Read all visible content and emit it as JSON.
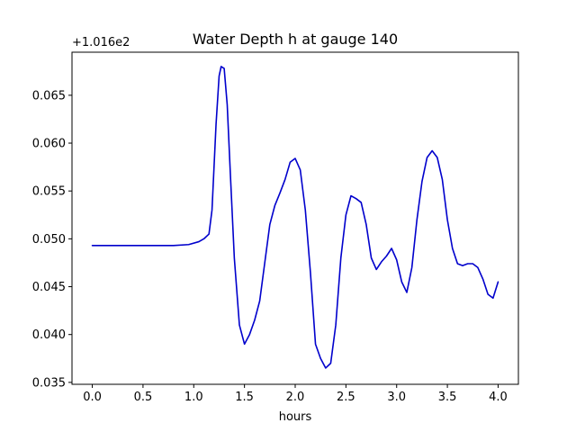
{
  "chart_data": {
    "type": "line",
    "title": "Water Depth h at gauge 140",
    "xlabel": "hours",
    "ylabel": "",
    "y_offset_label": "+1.016e2",
    "xlim": [
      -0.2,
      4.2
    ],
    "ylim": [
      0.0348,
      0.0695
    ],
    "x_ticks": [
      0.0,
      0.5,
      1.0,
      1.5,
      2.0,
      2.5,
      3.0,
      3.5,
      4.0
    ],
    "x_tick_labels": [
      "0.0",
      "0.5",
      "1.0",
      "1.5",
      "2.0",
      "2.5",
      "3.0",
      "3.5",
      "4.0"
    ],
    "y_ticks": [
      0.035,
      0.04,
      0.045,
      0.05,
      0.055,
      0.06,
      0.065
    ],
    "y_tick_labels": [
      "0.035",
      "0.040",
      "0.045",
      "0.050",
      "0.055",
      "0.060",
      "0.065"
    ],
    "grid": false,
    "line_color": "#0000cc",
    "series": [
      {
        "x": [
          0.0,
          0.2,
          0.4,
          0.6,
          0.8,
          0.95,
          1.05,
          1.1,
          1.15,
          1.18,
          1.22,
          1.25,
          1.27,
          1.3,
          1.33,
          1.36,
          1.4,
          1.45,
          1.5,
          1.55,
          1.6,
          1.65,
          1.7,
          1.75,
          1.8,
          1.85,
          1.9,
          1.95,
          2.0,
          2.05,
          2.1,
          2.15,
          2.2,
          2.25,
          2.3,
          2.35,
          2.4,
          2.45,
          2.5,
          2.55,
          2.6,
          2.65,
          2.7,
          2.75,
          2.8,
          2.85,
          2.9,
          2.95,
          3.0,
          3.05,
          3.1,
          3.15,
          3.2,
          3.25,
          3.3,
          3.35,
          3.4,
          3.45,
          3.5,
          3.55,
          3.6,
          3.65,
          3.7,
          3.75,
          3.8,
          3.85,
          3.9,
          3.95,
          4.0
        ],
        "y": [
          0.0493,
          0.0493,
          0.0493,
          0.0493,
          0.0493,
          0.0494,
          0.0497,
          0.05,
          0.0505,
          0.053,
          0.062,
          0.067,
          0.068,
          0.0678,
          0.064,
          0.057,
          0.048,
          0.041,
          0.039,
          0.04,
          0.0415,
          0.0435,
          0.0475,
          0.0515,
          0.0535,
          0.0548,
          0.0562,
          0.058,
          0.0584,
          0.0572,
          0.053,
          0.0465,
          0.039,
          0.0375,
          0.0365,
          0.037,
          0.041,
          0.048,
          0.0525,
          0.0545,
          0.0542,
          0.0538,
          0.0515,
          0.048,
          0.0468,
          0.0476,
          0.0482,
          0.049,
          0.0478,
          0.0455,
          0.0444,
          0.047,
          0.052,
          0.056,
          0.0585,
          0.0592,
          0.0585,
          0.0562,
          0.052,
          0.049,
          0.0474,
          0.0472,
          0.0474,
          0.0474,
          0.047,
          0.0458,
          0.0442,
          0.0438,
          0.0455
        ]
      }
    ]
  }
}
